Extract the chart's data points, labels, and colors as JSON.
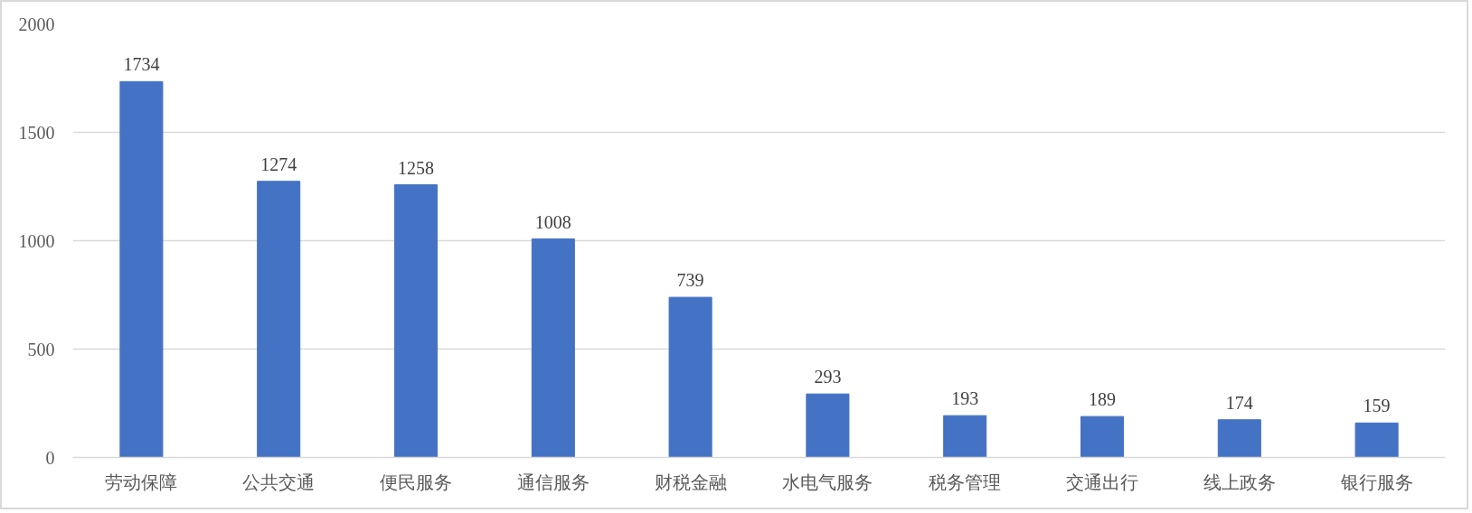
{
  "chart_data": {
    "type": "bar",
    "categories": [
      "劳动保障",
      "公共交通",
      "便民服务",
      "通信服务",
      "财税金融",
      "水电气服务",
      "税务管理",
      "交通出行",
      "线上政务",
      "银行服务"
    ],
    "values": [
      1734,
      1274,
      1258,
      1008,
      739,
      293,
      193,
      189,
      174,
      159
    ],
    "color": "#4472c4",
    "ylim": [
      0,
      2000
    ],
    "yticks": [
      0,
      500,
      1000,
      1500,
      2000
    ],
    "grid": "y",
    "data_labels": true
  }
}
